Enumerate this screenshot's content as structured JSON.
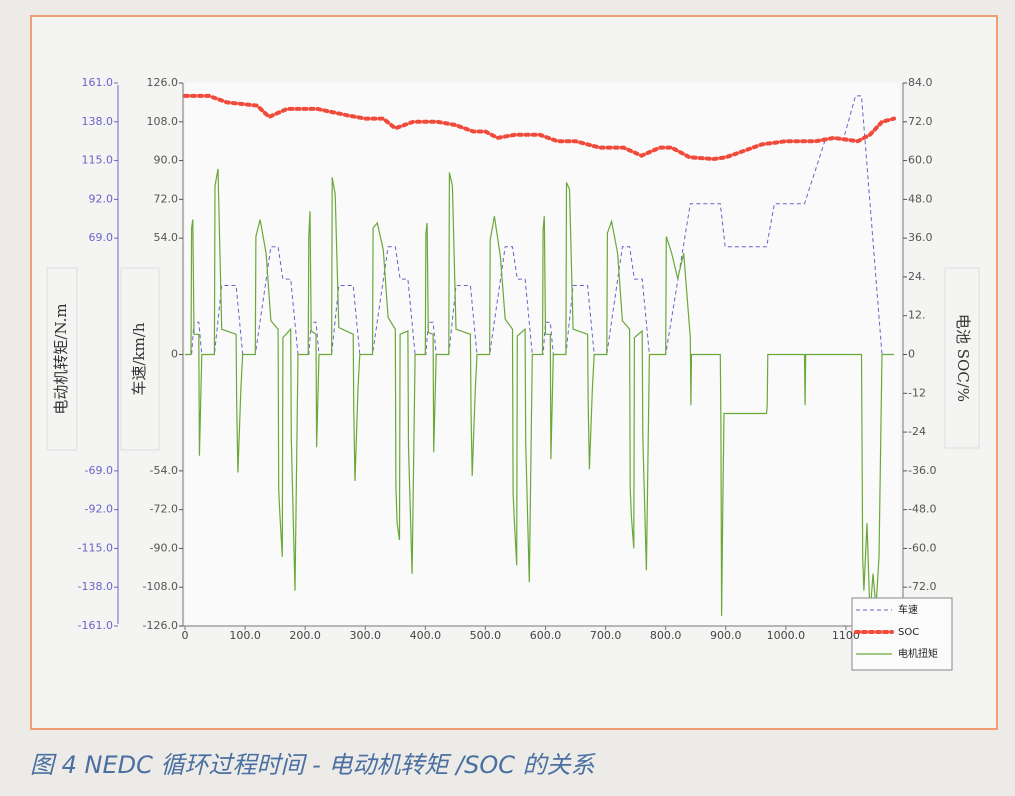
{
  "chart_data": {
    "type": "line",
    "caption": "图 4  NEDC 循环过程时间 - 电动机转矩 /SOC 的关系",
    "y_label": "车速/km/h",
    "y2_label": "电池 SOC/%",
    "y3_label": "电动机转矩/N.m",
    "xlim": [
      0,
      1190
    ],
    "xticks": [
      0,
      {
        "value": 100,
        "label": "100.0"
      },
      {
        "value": 200,
        "label": "200.0"
      },
      {
        "value": 300,
        "label": "300.0"
      },
      {
        "value": 400,
        "label": "400.0"
      },
      {
        "value": 500,
        "label": "500.0"
      },
      {
        "value": 600,
        "label": "600.0"
      },
      {
        "value": 700,
        "label": "700.0"
      },
      {
        "value": 800,
        "label": "800.0"
      },
      {
        "value": 900,
        "label": "900.0"
      },
      {
        "value": 1000,
        "label": "1000.0"
      },
      {
        "value": 1100,
        "label": "1100"
      }
    ],
    "ylim": [
      -126,
      126
    ],
    "yticks": [
      {
        "value": 126,
        "label": "126.0"
      },
      {
        "value": 108,
        "label": "108.0"
      },
      {
        "value": 90,
        "label": "90.0"
      },
      {
        "value": 72,
        "label": "72.0"
      },
      {
        "value": 54,
        "label": "54.0"
      },
      0,
      {
        "value": -54,
        "label": "-54.0"
      },
      {
        "value": -72,
        "label": "-72.0"
      },
      {
        "value": -90,
        "label": "-90.0"
      },
      {
        "value": -108,
        "label": "-108.0"
      },
      {
        "value": -126,
        "label": "-126.0"
      }
    ],
    "y2lim": [
      -84,
      84
    ],
    "y2ticks": [
      {
        "value": 84,
        "label": "84.0"
      },
      {
        "value": 72,
        "label": "72.0"
      },
      {
        "value": 60,
        "label": "60.0"
      },
      {
        "value": 48,
        "label": "48.0"
      },
      {
        "value": 36,
        "label": "36.0"
      },
      {
        "value": 24,
        "label": "24."
      },
      {
        "value": 12,
        "label": "12."
      },
      0,
      -12,
      -24,
      {
        "value": -36,
        "label": "-36.0"
      },
      {
        "value": -48,
        "label": "-48.0"
      },
      {
        "value": -60,
        "label": "-60.0"
      },
      {
        "value": -72,
        "label": "-72.0"
      }
    ],
    "y3lim": [
      -161,
      161
    ],
    "y3ticks": [
      {
        "value": 161,
        "label": "161.0"
      },
      {
        "value": 138,
        "label": "138.0"
      },
      {
        "value": 115,
        "label": "115.0"
      },
      {
        "value": 92,
        "label": "92.0"
      },
      {
        "value": 69,
        "label": "69.0"
      },
      {
        "value": -69,
        "label": "-69.0"
      },
      {
        "value": -92,
        "label": "-92.0"
      },
      {
        "value": -115,
        "label": "-115.0"
      },
      {
        "value": -138,
        "label": "-138.0"
      },
      {
        "value": -161,
        "label": "-161.0"
      }
    ],
    "grid": false,
    "legend": "lower right",
    "series": [
      {
        "name": "车速",
        "color": "#6b63c8",
        "style": "dashed",
        "x": [
          0,
          11,
          15,
          23,
          28,
          49,
          61,
          85,
          96,
          117,
          143,
          155,
          163,
          176,
          188,
          195,
          206,
          210,
          218,
          223,
          244,
          256,
          280,
          291,
          312,
          338,
          350,
          358,
          371,
          383,
          390,
          401,
          405,
          413,
          418,
          439,
          451,
          475,
          486,
          507,
          533,
          545,
          553,
          566,
          578,
          585,
          596,
          600,
          608,
          613,
          634,
          646,
          670,
          681,
          702,
          728,
          740,
          748,
          761,
          773,
          780,
          800,
          841,
          891,
          899,
          968,
          981,
          1031,
          1066,
          1096,
          1116,
          1126,
          1160,
          1180
        ],
        "values": [
          0,
          0,
          15,
          15,
          0,
          0,
          32,
          32,
          0,
          0,
          50,
          50,
          35,
          35,
          0,
          0,
          0,
          15,
          15,
          0,
          0,
          32,
          32,
          0,
          0,
          50,
          50,
          35,
          35,
          0,
          0,
          0,
          15,
          15,
          0,
          0,
          32,
          32,
          0,
          0,
          50,
          50,
          35,
          35,
          0,
          0,
          0,
          15,
          15,
          0,
          0,
          32,
          32,
          0,
          0,
          50,
          50,
          35,
          35,
          0,
          0,
          0,
          70,
          70,
          50,
          50,
          70,
          70,
          100,
          100,
          120,
          120,
          0,
          0
        ]
      },
      {
        "name": "SOC",
        "color": "#f04a3a",
        "style": "dotted",
        "axis": "y2",
        "x": [
          0,
          40,
          70,
          120,
          140,
          170,
          220,
          270,
          300,
          330,
          350,
          380,
          420,
          450,
          480,
          500,
          520,
          550,
          590,
          620,
          650,
          690,
          730,
          760,
          790,
          810,
          840,
          880,
          900,
          930,
          960,
          1000,
          1050,
          1080,
          1120,
          1140,
          1160,
          1180
        ],
        "values": [
          80,
          80,
          78,
          77,
          73.5,
          76,
          76,
          74,
          73,
          73,
          70,
          72,
          72,
          71,
          69,
          69,
          67,
          68,
          68,
          66,
          66,
          64,
          64,
          61.5,
          64,
          64,
          61,
          60.5,
          61,
          63,
          65,
          66,
          66,
          67,
          66,
          68,
          72,
          73
        ]
      },
      {
        "name": "电机扭矩",
        "color": "#6aa83a",
        "style": "solid",
        "axis": "y3",
        "x": [
          0,
          10,
          11,
          13,
          15,
          23,
          24,
          28,
          49,
          50,
          55,
          61,
          85,
          86,
          88,
          93,
          96,
          117,
          118,
          125,
          135,
          143,
          155,
          156,
          158,
          162,
          163,
          176,
          177,
          183,
          188,
          195,
          205,
          206,
          208,
          210,
          218,
          219,
          223,
          244,
          245,
          250,
          256,
          280,
          281,
          283,
          288,
          291,
          312,
          313,
          320,
          330,
          338,
          350,
          351,
          353,
          357,
          358,
          371,
          372,
          378,
          383,
          390,
          400,
          401,
          403,
          405,
          413,
          414,
          418,
          439,
          440,
          445,
          451,
          475,
          476,
          478,
          483,
          486,
          507,
          508,
          515,
          525,
          533,
          545,
          546,
          548,
          552,
          553,
          566,
          567,
          573,
          578,
          585,
          595,
          596,
          598,
          600,
          608,
          609,
          613,
          634,
          635,
          640,
          646,
          670,
          671,
          673,
          678,
          681,
          702,
          703,
          710,
          720,
          728,
          740,
          741,
          743,
          747,
          748,
          761,
          762,
          768,
          773,
          780,
          800,
          801,
          810,
          820,
          830,
          841,
          842,
          843,
          891,
          892,
          893,
          895,
          897,
          899,
          968,
          969,
          970,
          1031,
          1032,
          1033,
          1126,
          1128,
          1130,
          1135,
          1140,
          1145,
          1150,
          1155,
          1160,
          1180
        ],
        "values": [
          0,
          0,
          75,
          80,
          12,
          12,
          -60,
          0,
          0,
          100,
          110,
          15,
          12,
          -30,
          -70,
          -20,
          0,
          0,
          70,
          80,
          60,
          20,
          15,
          -80,
          -95,
          -120,
          10,
          15,
          -50,
          -140,
          0,
          0,
          0,
          70,
          85,
          14,
          12,
          -55,
          0,
          0,
          105,
          95,
          16,
          12,
          -35,
          -75,
          -20,
          0,
          0,
          75,
          78,
          62,
          22,
          15,
          -78,
          -100,
          -110,
          12,
          14,
          -55,
          -130,
          0,
          0,
          0,
          72,
          78,
          13,
          12,
          -58,
          0,
          0,
          108,
          100,
          15,
          12,
          -32,
          -72,
          -22,
          0,
          0,
          68,
          82,
          58,
          21,
          15,
          -82,
          -98,
          -125,
          11,
          15,
          -52,
          -135,
          0,
          0,
          0,
          74,
          82,
          12,
          12,
          -62,
          0,
          0,
          102,
          98,
          15,
          12,
          -30,
          -68,
          -20,
          0,
          0,
          72,
          79,
          60,
          20,
          15,
          -79,
          -96,
          -115,
          10,
          14,
          -48,
          -128,
          0,
          0,
          0,
          70,
          60,
          45,
          60,
          10,
          -30,
          0,
          0,
          -40,
          -155,
          -90,
          -35,
          -35,
          -35,
          -30,
          0,
          0,
          -30,
          0,
          0,
          -120,
          -140,
          -100,
          -155,
          -130,
          -150,
          -120,
          0,
          0
        ]
      }
    ]
  }
}
